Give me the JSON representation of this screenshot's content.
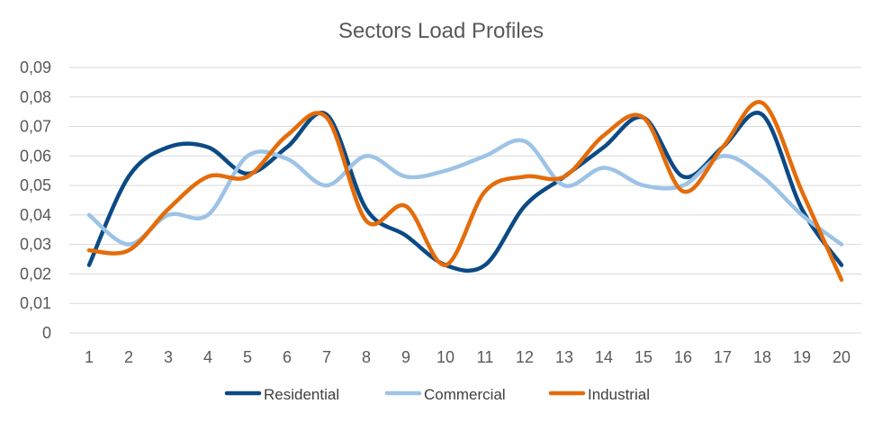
{
  "chart_data": {
    "type": "line",
    "title": "Sectors Load Profiles",
    "x": [
      1,
      2,
      3,
      4,
      5,
      6,
      7,
      8,
      9,
      10,
      11,
      12,
      13,
      14,
      15,
      16,
      17,
      18,
      19,
      20
    ],
    "y_ticks": [
      "0",
      "0,01",
      "0,02",
      "0,03",
      "0,04",
      "0,05",
      "0,06",
      "0,07",
      "0,08",
      "0,09"
    ],
    "ylim": [
      0,
      0.09
    ],
    "grid": true,
    "legend_position": "bottom",
    "series": [
      {
        "name": "Residential",
        "color": "#0b4a85",
        "values": [
          0.023,
          0.053,
          0.063,
          0.063,
          0.054,
          0.063,
          0.074,
          0.042,
          0.033,
          0.023,
          0.023,
          0.043,
          0.053,
          0.063,
          0.073,
          0.053,
          0.063,
          0.074,
          0.042,
          0.023
        ]
      },
      {
        "name": "Commercial",
        "color": "#9dc3e6",
        "values": [
          0.04,
          0.03,
          0.04,
          0.04,
          0.06,
          0.059,
          0.05,
          0.06,
          0.053,
          0.055,
          0.06,
          0.065,
          0.05,
          0.056,
          0.05,
          0.05,
          0.06,
          0.053,
          0.04,
          0.03
        ]
      },
      {
        "name": "Industrial",
        "color": "#e46c0a",
        "values": [
          0.028,
          0.028,
          0.042,
          0.053,
          0.053,
          0.067,
          0.073,
          0.038,
          0.043,
          0.023,
          0.048,
          0.053,
          0.053,
          0.067,
          0.073,
          0.048,
          0.063,
          0.078,
          0.048,
          0.018
        ]
      }
    ]
  }
}
